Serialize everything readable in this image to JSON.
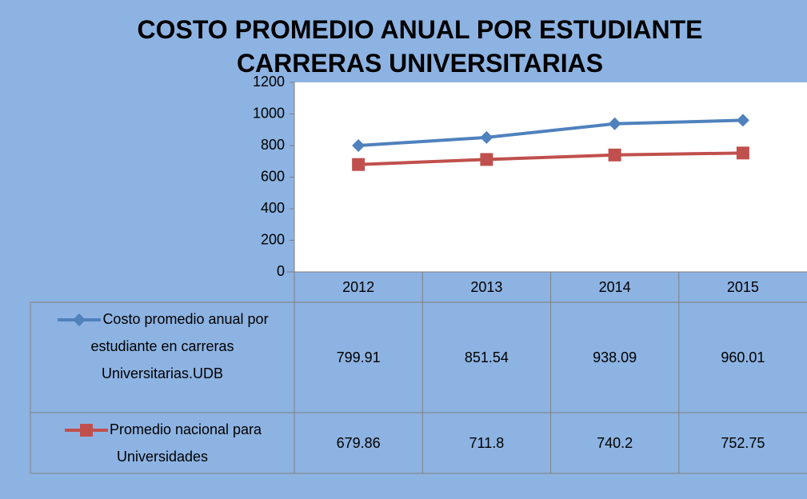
{
  "chart_data": {
    "type": "line",
    "title": "COSTO PROMEDIO ANUAL POR ESTUDIANTE CARRERAS UNIVERSITARIAS",
    "categories": [
      "2012",
      "2013",
      "2014",
      "2015"
    ],
    "series": [
      {
        "name": "Costo promedio anual por estudiante en carreras Universitarias.UDB",
        "color": "#4f81bd",
        "marker": "diamond",
        "values": [
          799.91,
          851.54,
          938.09,
          960.01
        ]
      },
      {
        "name": "Promedio nacional para Universidades",
        "color": "#c0504d",
        "marker": "square",
        "values": [
          679.86,
          711.8,
          740.2,
          752.75
        ]
      }
    ],
    "ylim": [
      0,
      1200
    ],
    "yticks": [
      0,
      200,
      400,
      600,
      800,
      1000,
      1200
    ],
    "grid": false,
    "data_table": true
  }
}
